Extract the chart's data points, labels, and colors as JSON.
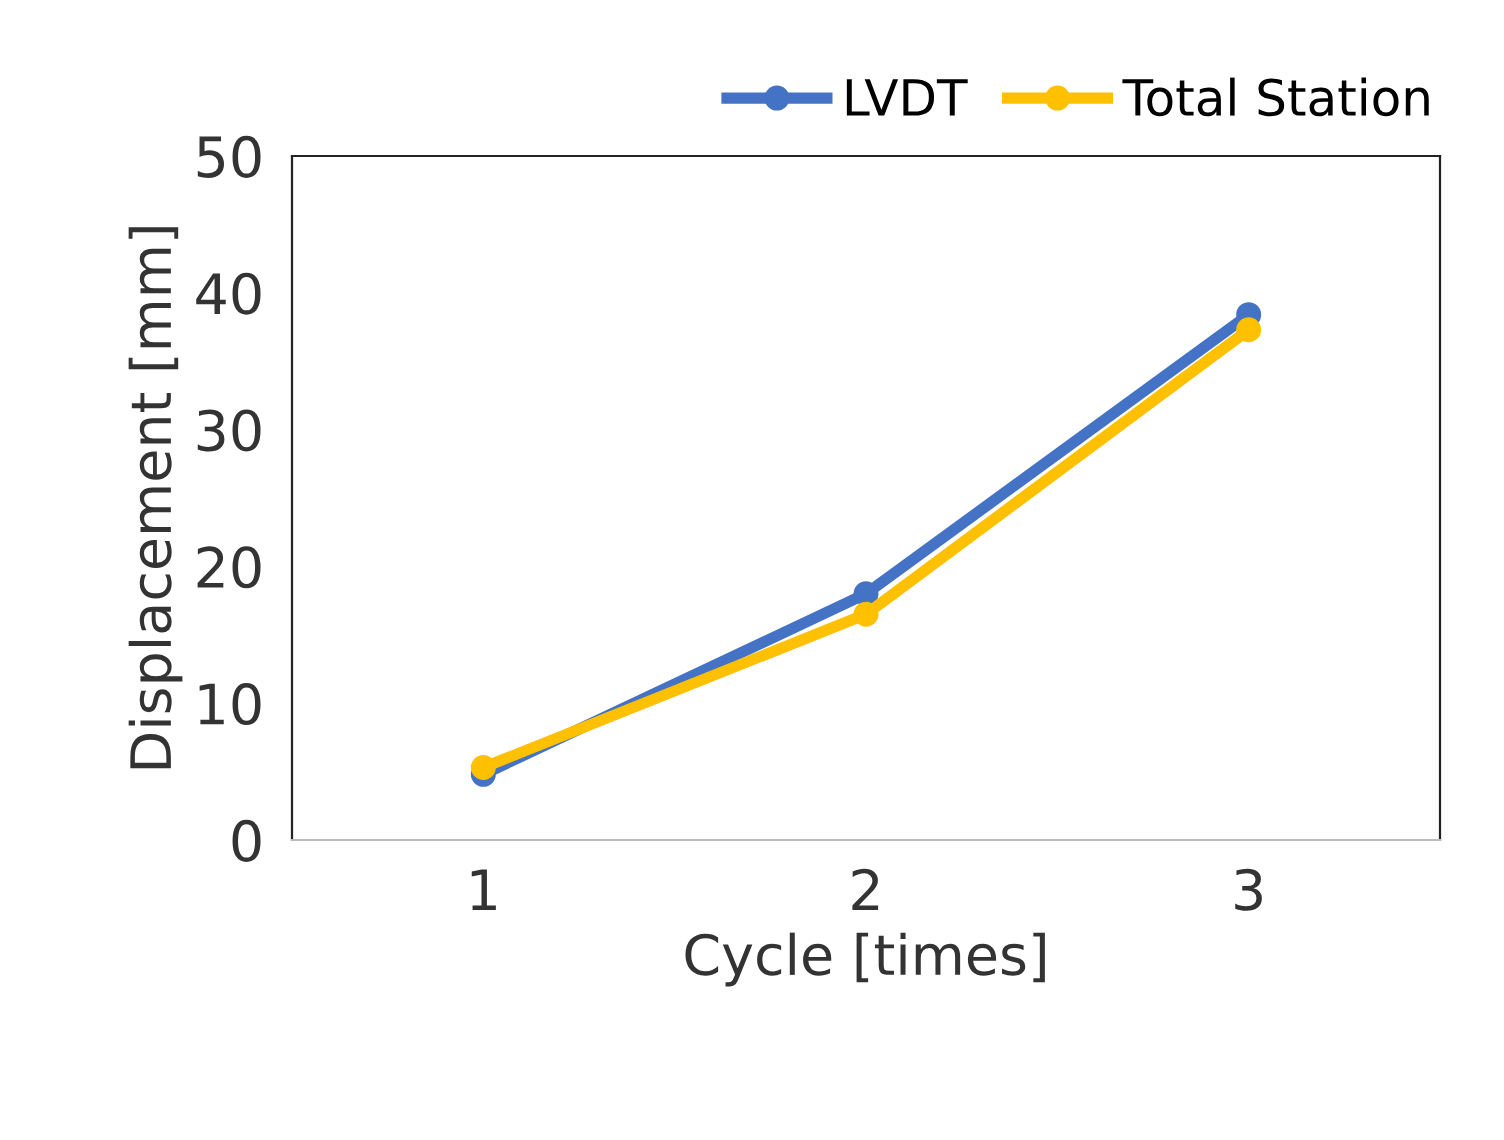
{
  "chart_data": {
    "type": "line",
    "xlabel": "Cycle [times]",
    "ylabel": "Displacement [mm]",
    "categories": [
      "1",
      "2",
      "3"
    ],
    "series": [
      {
        "name": "LVDT",
        "color": "#4472c4",
        "values": [
          4.8,
          18.0,
          38.4
        ]
      },
      {
        "name": "Total Station",
        "color": "#ffc000",
        "values": [
          5.3,
          16.5,
          37.3
        ]
      }
    ],
    "ylim": [
      0,
      50
    ],
    "yticks": [
      0,
      10,
      20,
      30,
      40,
      50
    ],
    "grid": false,
    "legend": "top right",
    "marker": "circle",
    "line_style": "solid"
  }
}
